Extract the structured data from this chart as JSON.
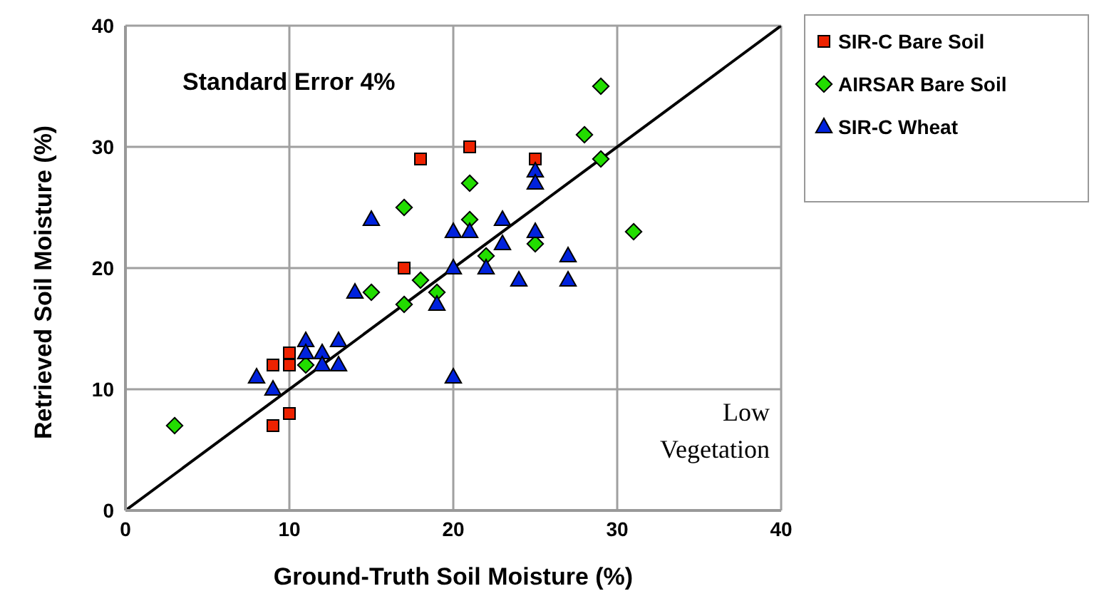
{
  "chart_data": {
    "type": "scatter",
    "xlabel": "Ground-Truth Soil Moisture (%)",
    "ylabel": "Retrieved Soil Moisture (%)",
    "xlim": [
      0,
      40
    ],
    "ylim": [
      0,
      40
    ],
    "xticks": [
      0,
      10,
      20,
      30,
      40
    ],
    "yticks": [
      0,
      10,
      20,
      30,
      40
    ],
    "grid": true,
    "legend": "right",
    "annotations": [
      "Standard Error 4%",
      "Low Vegetation"
    ],
    "series": [
      {
        "name": "SIR-C Bare Soil",
        "color": "#ee2200",
        "marker": "square",
        "x": [
          9,
          10,
          9,
          10,
          10,
          17,
          18,
          21,
          25
        ],
        "values": [
          7,
          8,
          12,
          12,
          13,
          20,
          29,
          30,
          29
        ]
      },
      {
        "name": "AIRSAR Bare Soil",
        "color": "#22dd00",
        "marker": "diamond",
        "x": [
          3,
          11,
          15,
          17,
          17,
          18,
          19,
          21,
          21,
          22,
          25,
          28,
          29,
          29,
          31
        ],
        "values": [
          7,
          12,
          18,
          17,
          25,
          19,
          18,
          24,
          27,
          21,
          22,
          31,
          35,
          29,
          23
        ]
      },
      {
        "name": "SIR-C Wheat",
        "color": "#0022dd",
        "marker": "triangle",
        "x": [
          8,
          9,
          11,
          11,
          12,
          12,
          13,
          13,
          14,
          15,
          19,
          20,
          20,
          20,
          21,
          22,
          23,
          23,
          24,
          25,
          25,
          25,
          27,
          27
        ],
        "values": [
          11,
          10,
          14,
          13,
          13,
          12,
          14,
          12,
          18,
          24,
          17,
          20,
          23,
          11,
          23,
          20,
          24,
          22,
          19,
          23,
          28,
          27,
          21,
          19
        ]
      },
      {
        "type": "line",
        "color": "#000000",
        "marker": "none",
        "x": [
          0,
          40
        ],
        "values": [
          0,
          40
        ]
      }
    ]
  }
}
